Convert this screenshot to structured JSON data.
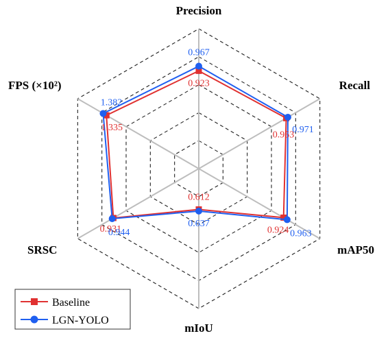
{
  "chart_data": {
    "type": "radar",
    "axes": [
      "Precision",
      "Recall",
      "mAP50",
      "mIoU",
      "SRSC",
      "FPS (×10²)"
    ],
    "series": [
      {
        "name": "Baseline",
        "color": "#e03131",
        "marker": "square",
        "values": [
          0.923,
          0.953,
          0.924,
          0.612,
          0.931,
          1.335
        ],
        "labels": [
          "0.923",
          "0.953",
          "0.924",
          "0.612",
          "0.931",
          "1.335"
        ]
      },
      {
        "name": "LGN-YOLO",
        "color": "#1f5ff0",
        "marker": "circle",
        "values": [
          0.967,
          0.971,
          0.963,
          0.637,
          0.944,
          1.382
        ],
        "labels": [
          "0.967",
          "0.971",
          "0.963",
          "0.637",
          "0.944",
          "1.382"
        ]
      }
    ],
    "grid": true,
    "legend": "bottom-left"
  }
}
